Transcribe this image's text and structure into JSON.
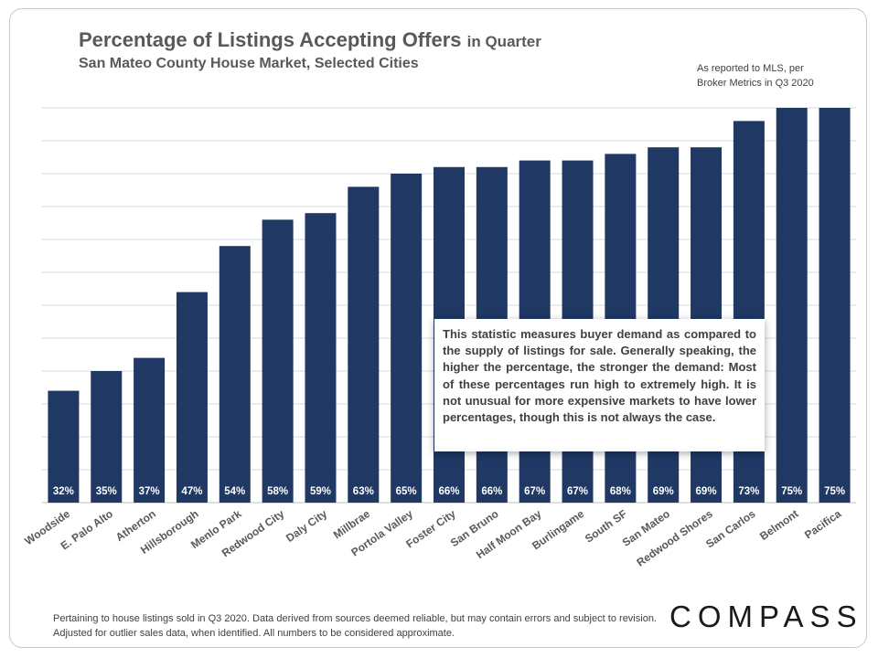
{
  "header": {
    "title_main": "Percentage of Listings Accepting Offers",
    "title_suffix": "in Quarter",
    "subtitle": "San Mateo County House Market, Selected Cities",
    "source_line1": "As reported to MLS, per",
    "source_line2": "Broker Metrics in Q3 2020"
  },
  "note": "This statistic measures buyer demand as compared to the supply of listings for sale. Generally speaking, the higher the percentage, the stronger the demand: Most of these percentages run high to extremely high. It is not unusual for more expensive markets to have lower percentages, though this is not always the case.",
  "footer": "Pertaining to house listings sold in Q3 2020. Data derived from sources deemed reliable, but may contain errors and subject to revision. Adjusted for outlier sales data, when identified. All numbers to be considered approximate.",
  "logo": "COMPASS",
  "colors": {
    "bar": "#1f3864",
    "grid": "#d9d9d9",
    "label": "#ffffff",
    "tick": "#595959"
  },
  "chart_data": {
    "type": "bar",
    "categories": [
      "Woodside",
      "E. Palo Alto",
      "Atherton",
      "Hillsborough",
      "Menlo Park",
      "Redwood City",
      "Daly City",
      "Millbrae",
      "Portola Valley",
      "Foster City",
      "San Bruno",
      "Half Moon Bay",
      "Burlingame",
      "South SF",
      "San Mateo",
      "Redwood Shores",
      "San Carlos",
      "Belmont",
      "Pacifica"
    ],
    "values": [
      32,
      35,
      37,
      47,
      54,
      58,
      59,
      63,
      65,
      66,
      66,
      67,
      67,
      68,
      69,
      69,
      73,
      75,
      75
    ],
    "data_labels": [
      "32%",
      "35%",
      "37%",
      "47%",
      "54%",
      "58%",
      "59%",
      "63%",
      "65%",
      "66%",
      "66%",
      "67%",
      "67%",
      "68%",
      "69%",
      "69%",
      "73%",
      "75%",
      "75%"
    ],
    "ylim": [
      15,
      75
    ],
    "grid": true
  }
}
